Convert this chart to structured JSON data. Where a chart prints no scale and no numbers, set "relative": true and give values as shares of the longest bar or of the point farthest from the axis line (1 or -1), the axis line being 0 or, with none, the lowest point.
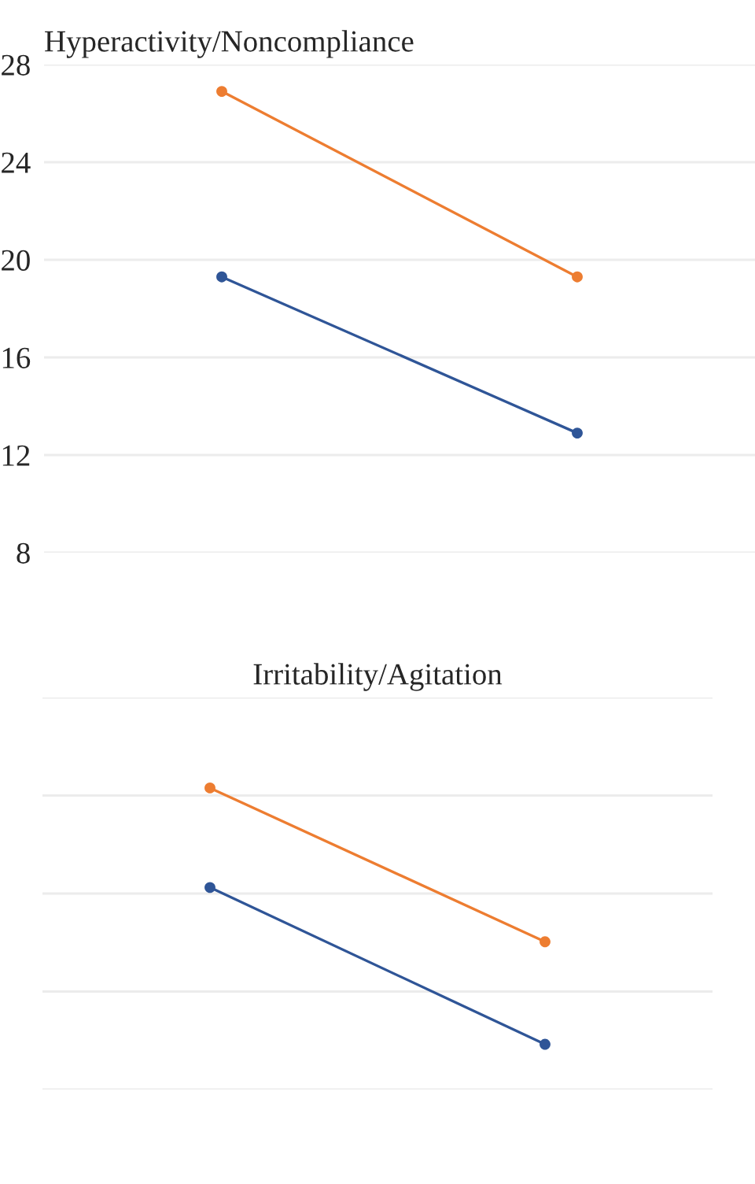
{
  "chart_data": [
    {
      "type": "line",
      "title": "Hyperactivity/Noncompliance",
      "categories": [
        null,
        null
      ],
      "ylim": [
        8,
        28
      ],
      "yticks": [
        8,
        12,
        16,
        20,
        24,
        28
      ],
      "grid": "y",
      "marker": "circle",
      "tick_labels": "y",
      "series": [
        {
          "color": "#ed7d31",
          "values": [
            26.9,
            19.3
          ]
        },
        {
          "color": "#2f5597",
          "values": [
            19.3,
            12.9
          ]
        }
      ]
    },
    {
      "type": "line",
      "title": "Irritability/Agitation",
      "categories": [
        null,
        null
      ],
      "relative": true,
      "grid": "y",
      "marker": "circle",
      "tick_labels": false,
      "series": [
        {
          "color": "#ed7d31",
          "values": [
            1,
            0.49
          ]
        },
        {
          "color": "#2f5597",
          "values": [
            0.67,
            0.15
          ]
        }
      ]
    }
  ]
}
